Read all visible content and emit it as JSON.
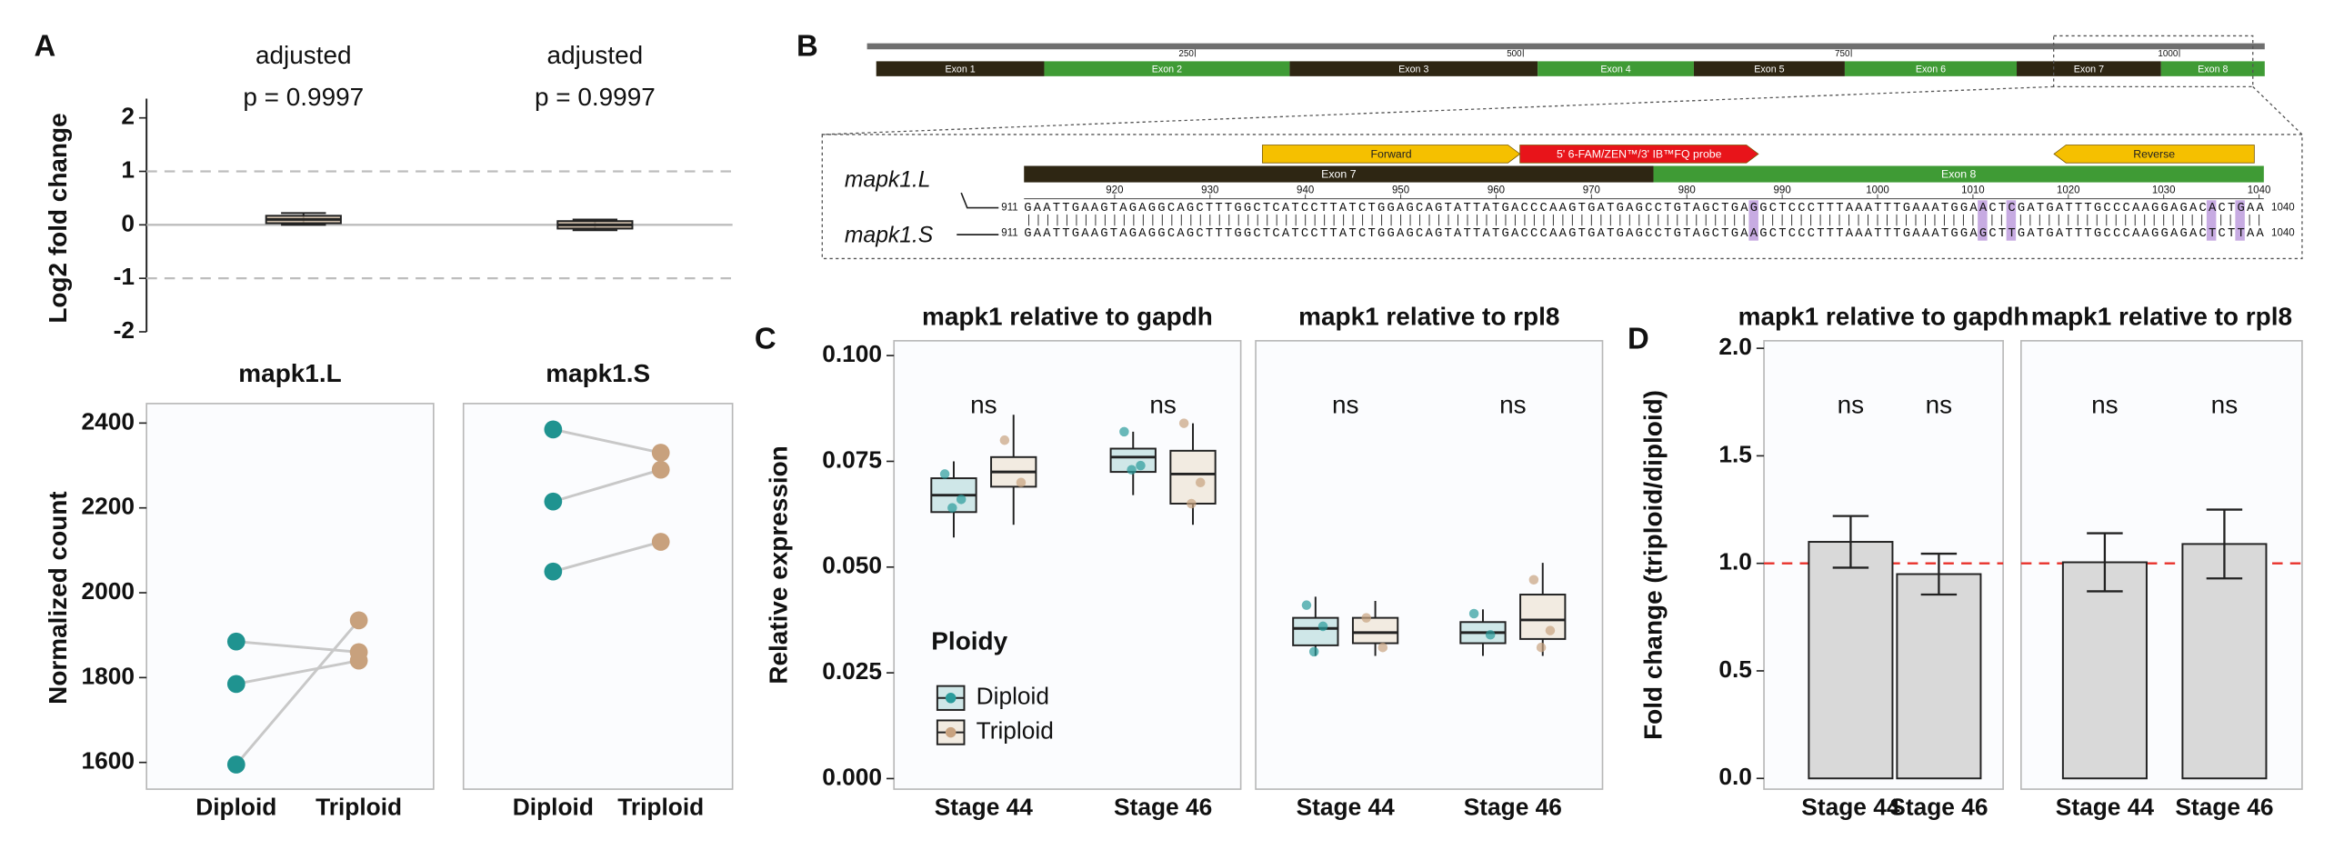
{
  "panel_labels": [
    "A",
    "B",
    "C",
    "D"
  ],
  "chart_data": [
    {
      "type": "box",
      "y_label": "Log2 fold change",
      "annotations": [
        [
          "adjusted",
          "p = 0.9997"
        ],
        [
          "adjusted",
          "p = 0.9997"
        ]
      ],
      "boxes": [
        {
          "low": 0.0,
          "q1": 0.03,
          "median": 0.1,
          "q3": 0.17,
          "high": 0.22
        },
        {
          "low": -0.1,
          "q1": -0.07,
          "median": 0.0,
          "q3": 0.07,
          "high": 0.1
        }
      ],
      "color": "#c7b39b",
      "reference_lines": [
        {
          "value": 1,
          "dashed": true,
          "color": "#bdbdbd"
        },
        {
          "value": 0,
          "dashed": false,
          "color": "#bdbdbd"
        },
        {
          "value": -1,
          "dashed": true,
          "color": "#bdbdbd"
        }
      ],
      "ylim": [
        -2,
        2.36
      ],
      "yticks": [
        -2,
        -1,
        0,
        1,
        2
      ]
    },
    {
      "type": "paired",
      "title": "mapk1.L",
      "y_label": "Normalized count",
      "frame": true,
      "categories": [
        "Diploid",
        "Triploid"
      ],
      "colors": [
        "#1f9390",
        "#c8a17d"
      ],
      "line_color": "#c8c8c8",
      "series": [
        {
          "values": [
            1885,
            1860
          ]
        },
        {
          "values": [
            1785,
            1840
          ]
        },
        {
          "values": [
            1595,
            1935
          ]
        }
      ],
      "ylim": [
        1537,
        2446
      ],
      "yticks": [
        1600,
        1800,
        2000,
        2200,
        2400
      ]
    },
    {
      "type": "paired",
      "title": "mapk1.S",
      "frame": true,
      "categories": [
        "Diploid",
        "Triploid"
      ],
      "colors": [
        "#1f9390",
        "#c8a17d"
      ],
      "line_color": "#c8c8c8",
      "series": [
        {
          "values": [
            2385,
            2330
          ]
        },
        {
          "values": [
            2215,
            2290
          ]
        },
        {
          "values": [
            2050,
            2120
          ]
        }
      ],
      "ylim": [
        1537,
        2446
      ]
    },
    {
      "type": "box",
      "title": "mapk1 relative to gapdh",
      "y_label": "Relative expression",
      "frame": true,
      "categories": [
        "Stage 44",
        "Stage 46"
      ],
      "annotations": [
        [
          "ns"
        ],
        [
          "ns"
        ]
      ],
      "legend": "lower-left",
      "legend_title": "Ploidy",
      "series": [
        {
          "name": "Diploid",
          "color": "#2a9b9b",
          "fill": "#cfe7e8",
          "boxes": [
            {
              "low": 0.057,
              "q1": 0.063,
              "median": 0.067,
              "q3": 0.071,
              "high": 0.075,
              "points": [
                0.072,
                0.066,
                0.064
              ]
            },
            {
              "low": 0.067,
              "q1": 0.0725,
              "median": 0.076,
              "q3": 0.078,
              "high": 0.082,
              "points": [
                0.082,
                0.074,
                0.073
              ]
            }
          ]
        },
        {
          "name": "Triploid",
          "color": "#c8a27f",
          "fill": "#f2ebe1",
          "boxes": [
            {
              "low": 0.06,
              "q1": 0.069,
              "median": 0.0725,
              "q3": 0.076,
              "high": 0.086,
              "points": [
                0.08,
                0.07
              ]
            },
            {
              "low": 0.06,
              "q1": 0.065,
              "median": 0.072,
              "q3": 0.0775,
              "high": 0.084,
              "points": [
                0.084,
                0.07,
                0.065
              ]
            }
          ]
        }
      ],
      "ylim": [
        -0.0025,
        0.1035
      ],
      "yticks": [
        {
          "value": 0,
          "label": "0.000"
        },
        0.025,
        {
          "value": 0.05,
          "label": "0.050"
        },
        0.075,
        {
          "value": 0.1,
          "label": "0.100"
        }
      ]
    },
    {
      "type": "box",
      "title": "mapk1 relative to rpl8",
      "frame": true,
      "categories": [
        "Stage 44",
        "Stage 46"
      ],
      "annotations": [
        [
          "ns"
        ],
        [
          "ns"
        ]
      ],
      "series": [
        {
          "color": "#2a9b9b",
          "fill": "#cfe7e8",
          "boxes": [
            {
              "low": 0.029,
              "q1": 0.0315,
              "median": 0.0355,
              "q3": 0.038,
              "high": 0.043,
              "points": [
                0.041,
                0.036,
                0.03
              ]
            },
            {
              "low": 0.029,
              "q1": 0.032,
              "median": 0.0345,
              "q3": 0.037,
              "high": 0.04,
              "points": [
                0.039,
                0.034
              ]
            }
          ]
        },
        {
          "color": "#c8a27f",
          "fill": "#f2ebe1",
          "boxes": [
            {
              "low": 0.029,
              "q1": 0.032,
              "median": 0.0345,
              "q3": 0.038,
              "high": 0.042,
              "points": [
                0.038,
                0.031
              ]
            },
            {
              "low": 0.029,
              "q1": 0.033,
              "median": 0.0375,
              "q3": 0.0435,
              "high": 0.051,
              "points": [
                0.047,
                0.035,
                0.031
              ]
            }
          ]
        }
      ],
      "ylim": [
        -0.0025,
        0.1035
      ]
    },
    {
      "type": "bar",
      "title": "mapk1 relative to gapdh",
      "y_label": "Fold change (triploid/diploid)",
      "frame": true,
      "categories": [
        "Stage 44",
        "Stage 46"
      ],
      "annotations": [
        [
          "ns"
        ],
        [
          "ns"
        ]
      ],
      "values": [
        1.1,
        0.95
      ],
      "errors": [
        0.12,
        0.095
      ],
      "color": "#d9d9d9",
      "reference_lines": [
        {
          "value": 1,
          "dashed": true,
          "color": "#e8302a"
        }
      ],
      "ylim": [
        -0.05,
        2.035
      ],
      "yticks": [
        {
          "value": 0,
          "label": "0.0"
        },
        0.5,
        {
          "value": 1,
          "label": "1.0"
        },
        1.5,
        {
          "value": 2,
          "label": "2.0"
        }
      ]
    },
    {
      "type": "bar",
      "title": "mapk1 relative to rpl8",
      "frame": true,
      "categories": [
        "Stage 44",
        "Stage 46"
      ],
      "annotations": [
        [
          "ns"
        ],
        [
          "ns"
        ]
      ],
      "values": [
        1.005,
        1.09
      ],
      "errors": [
        0.135,
        0.16
      ],
      "color": "#d9d9d9",
      "reference_lines": [
        {
          "value": 1,
          "dashed": true,
          "color": "#e8302a"
        }
      ],
      "ylim": [
        -0.05,
        2.035
      ]
    }
  ],
  "diagram": {
    "ruler": {
      "range": [
        0,
        1065
      ],
      "ticks": [
        250,
        500,
        750,
        1000
      ]
    },
    "exons": [
      {
        "label": "Exon 1",
        "start": 7,
        "end": 135
      },
      {
        "label": "Exon 2",
        "start": 135,
        "end": 322
      },
      {
        "label": "Exon 3",
        "start": 322,
        "end": 511
      },
      {
        "label": "Exon 4",
        "start": 511,
        "end": 630
      },
      {
        "label": "Exon 5",
        "start": 630,
        "end": 745
      },
      {
        "label": "Exon 6",
        "start": 745,
        "end": 876
      },
      {
        "label": "Exon 7",
        "start": 876,
        "end": 986
      },
      {
        "label": "Exon 8",
        "start": 986,
        "end": 1065
      }
    ],
    "zoom": {
      "ticks": [
        920,
        930,
        940,
        950,
        960,
        970,
        980,
        990,
        1000,
        1010,
        1020,
        1030,
        1040
      ],
      "features": [
        {
          "label": "Forward",
          "start": 936,
          "end": 962,
          "direction": "right",
          "color": "#f5c000"
        },
        {
          "label": "5' 6-FAM/ZEN™/3' IB™FQ probe",
          "start": 963,
          "end": 987,
          "direction": "right",
          "color": "#e8141a"
        },
        {
          "label": "Reverse",
          "start": 1019,
          "end": 1039,
          "direction": "left",
          "color": "#f5c000"
        }
      ],
      "exons": [
        {
          "label": "Exon 7",
          "start": 911,
          "end": 976
        },
        {
          "label": "Exon 8",
          "start": 977,
          "end": 1040
        }
      ],
      "sequences": [
        {
          "name": "mapk1.L",
          "start": 911,
          "end": 1040,
          "sequence": "GAATTGAAGTAGAGGCAGCTTTGGCTCATCCTTATCTGGAGCAGTATTATGACCCAAGTGATGAGCCTGTAGCTGAGGCTCCCTTTAAATTTGAAATGGAACTCGATGATTTGCCCAAGGAGACACTGAA"
        },
        {
          "name": "mapk1.S",
          "start": 911,
          "end": 1040,
          "sequence": "GAATTGAAGTAGAGGCAGCTTTGGCTCATCCTTATCTGGAGCAGTATTATGACCCAAGTGATGAGCCTGTAGCTGAAGCTCCCTTTAAATTTGAAATGGAGCTTGATGATTTGCCCAAGGAGACTCTTAA"
        }
      ],
      "highlight_color": "#b48fd8"
    }
  }
}
